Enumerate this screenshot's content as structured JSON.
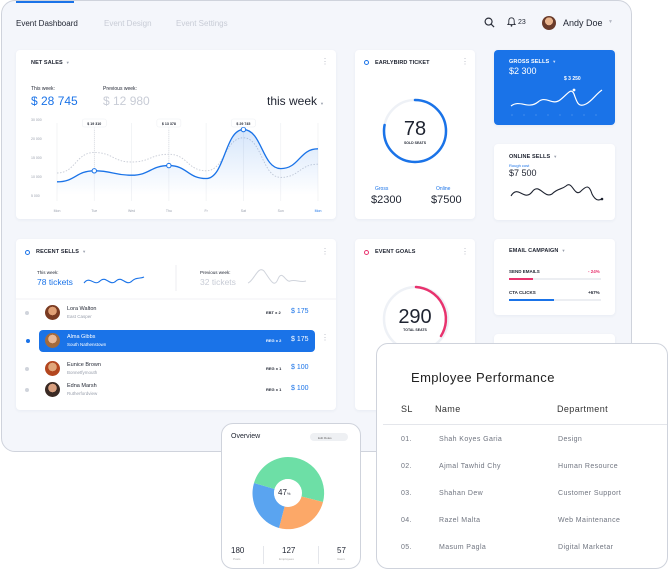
{
  "topbar": {
    "tabs": [
      "Event Dashboard",
      "Event Design",
      "Event Settings"
    ],
    "notifications": "23",
    "user": "Andy Doe"
  },
  "net_sales": {
    "title": "NET SALES",
    "this_week_label": "This week:",
    "this_week_value": "$ 28 745",
    "prev_week_label": "Previous week:",
    "prev_week_value": "$ 12 980",
    "range": "this week",
    "callouts": [
      "$ 19 310",
      "$ 13 378",
      "$ 29 745"
    ]
  },
  "chart_data": {
    "type": "line",
    "categories": [
      "Mon",
      "Tue",
      "Wed",
      "Thu",
      "Fr",
      "Sat",
      "Sun",
      "Mon"
    ],
    "ytick_labels": [
      "30 000",
      "20 000",
      "15 000",
      "10 000",
      "5 000",
      "0"
    ],
    "series": [
      {
        "values": [
          6000,
          11000,
          9000,
          13378,
          7500,
          29745,
          12000,
          21000
        ]
      },
      {
        "values": [
          10000,
          19310,
          15000,
          18500,
          11000,
          26000,
          8000,
          14000
        ]
      }
    ]
  },
  "earlybird": {
    "title": "EARLYBIRD TICKET",
    "value": "78",
    "caption": "SOLD SEATS",
    "progress": 0.78,
    "gross_label": "Gross",
    "gross_value": "$2300",
    "online_label": "Online",
    "online_value": "$7500"
  },
  "gross_sells": {
    "title": "GROSS SELLS",
    "value": "$2 300",
    "peak": "$ 3 250"
  },
  "online_sells": {
    "title": "ONLINE SELLS",
    "sub": "Rough cost",
    "value": "$7 500"
  },
  "recent_sells": {
    "title": "RECENT SELLS",
    "this_week_label": "This week:",
    "this_week_value": "78 tickets",
    "prev_week_label": "Previous week:",
    "prev_week_value": "32 tickets",
    "rows": [
      {
        "name": "Lora Walton",
        "place": "East Casper",
        "tix": "EBT x 2",
        "price": "$ 175"
      },
      {
        "name": "Alma Gibbs",
        "place": "South Nathenstown",
        "tix": "REG x 2",
        "price": "$ 175"
      },
      {
        "name": "Eunice Brown",
        "place": "Bonnetfymouth",
        "tix": "REG x 1",
        "price": "$ 100"
      },
      {
        "name": "Edna Marsh",
        "place": "Rutherfordview",
        "tix": "REG x 1",
        "price": "$ 100"
      }
    ]
  },
  "event_goals": {
    "title": "EVENT GOALS",
    "value": "290",
    "caption": "TOTAL SEATS"
  },
  "email_campaign": {
    "title": "EMAIL CAMPAIGN",
    "send_label": "SEND EMAILS",
    "send_value": "- 24%",
    "cta_label": "CTA CLICKS",
    "cta_value": "+67%"
  },
  "overview": {
    "title": "Overview",
    "select": "Edit Roles",
    "center": "47",
    "stats": [
      {
        "value": "180",
        "label": "Posts"
      },
      {
        "value": "127",
        "label": "Employees"
      },
      {
        "value": "57",
        "label": "Users"
      }
    ]
  },
  "employee": {
    "title": "Employee Performance",
    "headers": [
      "SL",
      "Name",
      "Department"
    ],
    "rows": [
      [
        "01.",
        "Shah Koyes Garia",
        "Design"
      ],
      [
        "02.",
        "Ajmal Tawhid Chy",
        "Human Resource"
      ],
      [
        "03.",
        "Shahan Dew",
        "Customer Support"
      ],
      [
        "04.",
        "Razel Malta",
        "Web Maintenance"
      ],
      [
        "05.",
        "Masum Pagla",
        "Digital Marketar"
      ]
    ]
  }
}
